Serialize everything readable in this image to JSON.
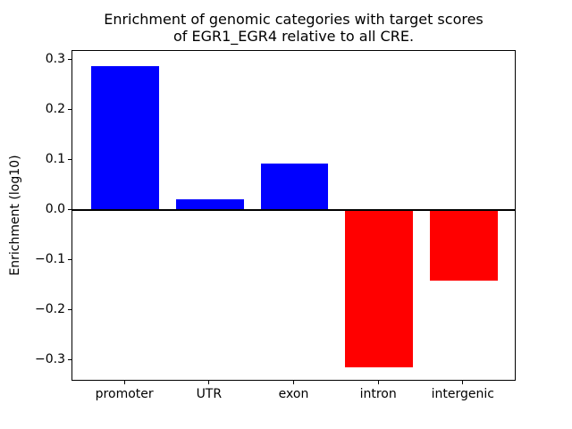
{
  "chart_data": {
    "type": "bar",
    "title": "Enrichment of genomic categories with target scores\nof EGR1_EGR4 relative to all CRE.",
    "xlabel": "",
    "ylabel": "Enrichment (log10)",
    "categories": [
      "promoter",
      "UTR",
      "exon",
      "intron",
      "intergenic"
    ],
    "values": [
      0.287,
      0.022,
      0.093,
      -0.313,
      -0.141
    ],
    "bar_colors": [
      "#0000ff",
      "#0000ff",
      "#0000ff",
      "#ff0000",
      "#ff0000"
    ],
    "positive_color": "#0000ff",
    "negative_color": "#ff0000",
    "bar_width": 0.8,
    "ylim": [
      -0.342,
      0.318
    ],
    "xlim": [
      -0.625,
      4.625
    ],
    "yticks": [
      {
        "value": 0.3,
        "label": "0.3"
      },
      {
        "value": 0.2,
        "label": "0.2"
      },
      {
        "value": 0.1,
        "label": "0.1"
      },
      {
        "value": 0.0,
        "label": "0.0"
      },
      {
        "value": -0.1,
        "label": "−0.1"
      },
      {
        "value": -0.2,
        "label": "−0.2"
      },
      {
        "value": -0.3,
        "label": "−0.3"
      }
    ],
    "grid": false,
    "legend": "none",
    "zero_line": true,
    "axis_color": "#000000",
    "background_color": "#ffffff"
  }
}
